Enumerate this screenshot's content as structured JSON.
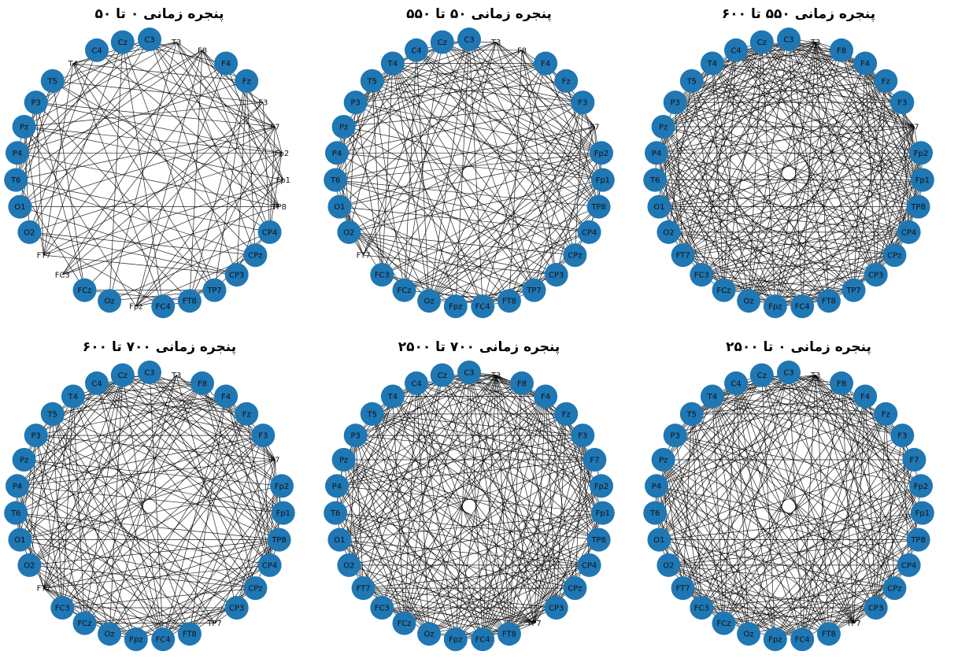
{
  "figure": {
    "node_color": "#1f77b4",
    "edge_color": "#000000",
    "node_order": [
      "C3",
      "T3",
      "F8",
      "F4",
      "Fz",
      "F3",
      "F7",
      "Fp2",
      "Fp1",
      "TP8",
      "CP4",
      "CPz",
      "CP3",
      "TP7",
      "FT8",
      "FC4",
      "Fpz",
      "Oz",
      "FCz",
      "FC3",
      "FT7",
      "O2",
      "O1",
      "T6",
      "P4",
      "Pz",
      "P3",
      "T5",
      "T4",
      "C4",
      "Cz"
    ],
    "panels": [
      {
        "title": "پنجره زمانی ۰ تا ۵۰",
        "hidden_nodes": [
          "T3",
          "F8",
          "F3",
          "F7",
          "Fp2",
          "Fp1",
          "TP8",
          "Fpz",
          "FT7",
          "FC3",
          "T4"
        ],
        "density": 0.28,
        "seed": 11
      },
      {
        "title": "پنجره زمانی ۵۰ تا ۵۵۰",
        "hidden_nodes": [
          "T3",
          "F8",
          "F7",
          "FT7"
        ],
        "density": 0.4,
        "seed": 23
      },
      {
        "title": "پنجره زمانی ۵۵۰ تا ۶۰۰",
        "hidden_nodes": [
          "T3",
          "F7"
        ],
        "density": 0.62,
        "seed": 37
      },
      {
        "title": "پنجره زمانی ۷۰۰ تا ۶۰۰",
        "hidden_nodes": [
          "T3",
          "F7",
          "FT7",
          "TP7"
        ],
        "density": 0.4,
        "seed": 41
      },
      {
        "title": "پنجره زمانی ۷۰۰ تا ۲۵۰۰",
        "hidden_nodes": [
          "T3",
          "TP7"
        ],
        "density": 0.55,
        "seed": 53
      },
      {
        "title": "پنجره زمانی ۰ تا ۲۵۰۰",
        "hidden_nodes": [
          "T3",
          "TP7"
        ],
        "density": 0.5,
        "seed": 67
      }
    ]
  }
}
